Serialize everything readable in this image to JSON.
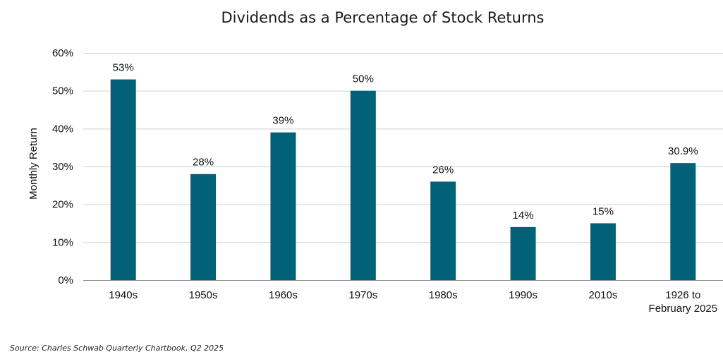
{
  "chart_data": {
    "type": "bar",
    "title": "Dividends as a Percentage of Stock Returns",
    "xlabel": "",
    "ylabel": "Monthly Return",
    "categories": [
      "1940s",
      "1950s",
      "1960s",
      "1970s",
      "1980s",
      "1990s",
      "2010s",
      "1926 to February 2025"
    ],
    "values": [
      53,
      28,
      39,
      50,
      26,
      14,
      15,
      30.9
    ],
    "data_labels": [
      "53%",
      "28%",
      "39%",
      "50%",
      "26%",
      "14%",
      "15%",
      "30.9%"
    ],
    "y_ticks": [
      "0%",
      "10%",
      "20%",
      "30%",
      "40%",
      "50%",
      "60%"
    ],
    "ylim": [
      0,
      60
    ],
    "grid": true,
    "legend": "none",
    "bar_color": "#006179",
    "source": "Source: Charles Schwab Quarterly Chartbook, Q2 2025"
  }
}
